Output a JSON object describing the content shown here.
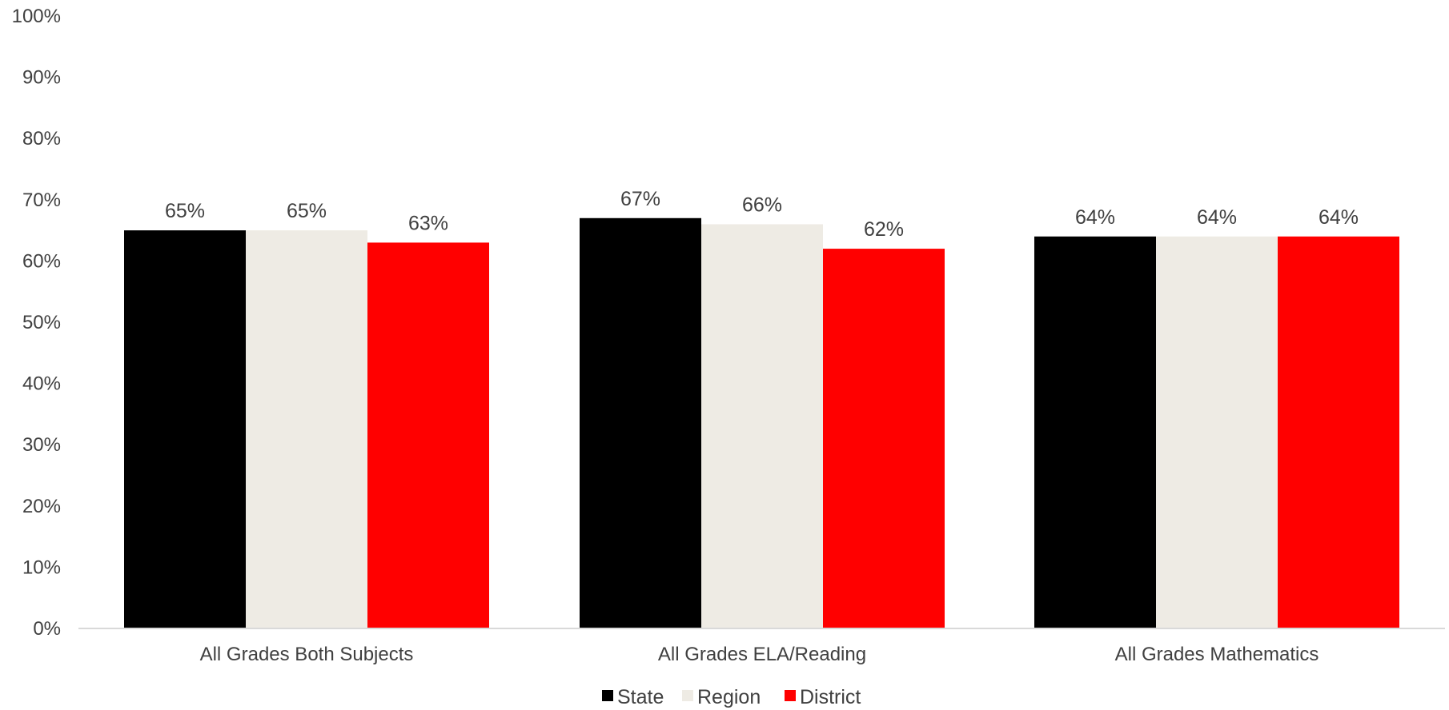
{
  "chart_data": {
    "type": "bar",
    "categories": [
      "All Grades Both Subjects",
      "All Grades ELA/Reading",
      "All Grades Mathematics"
    ],
    "series": [
      {
        "name": "State",
        "values": [
          65,
          67,
          64
        ],
        "labels": [
          "65%",
          "67%",
          "64%"
        ],
        "color": "#000000"
      },
      {
        "name": "Region",
        "values": [
          65,
          66,
          64
        ],
        "labels": [
          "65%",
          "66%",
          "64%"
        ],
        "color": "#EEEBE4"
      },
      {
        "name": "District",
        "values": [
          63,
          62,
          64
        ],
        "labels": [
          "63%",
          "62%",
          "64%"
        ],
        "color": "#FF0000"
      }
    ],
    "ylim": [
      0,
      100
    ],
    "yticks": [
      "0%",
      "10%",
      "20%",
      "30%",
      "40%",
      "50%",
      "60%",
      "70%",
      "80%",
      "90%",
      "100%"
    ],
    "grid": false,
    "legend": "bottom-center",
    "title": "",
    "xlabel": "",
    "ylabel": ""
  }
}
